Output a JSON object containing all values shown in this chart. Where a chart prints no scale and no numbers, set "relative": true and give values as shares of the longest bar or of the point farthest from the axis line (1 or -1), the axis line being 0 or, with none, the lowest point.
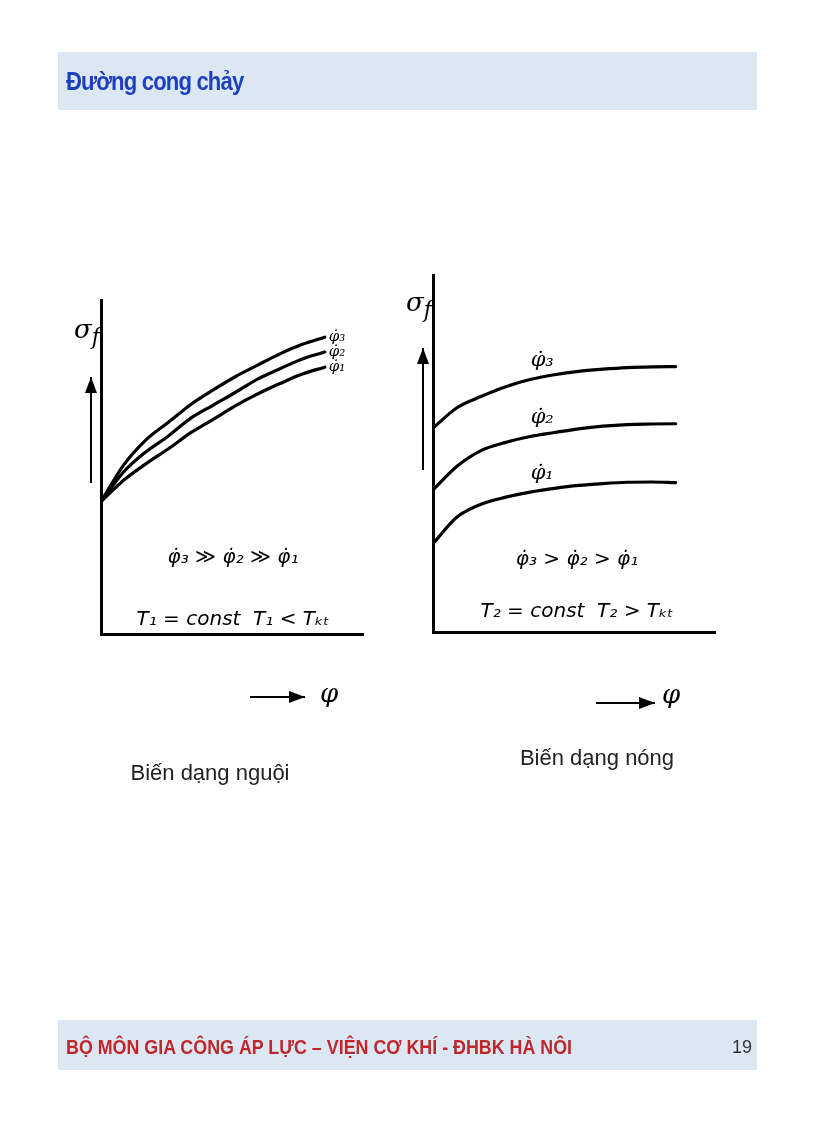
{
  "chart_data": [
    {
      "type": "other",
      "title": "Đường cong chảy",
      "annotations": [
        "BỘ MÔN GIA CÔNG ÁP LỰC – VIỆN CƠ KHÍ - ĐHBK HÀ NÔI",
        "19"
      ]
    },
    {
      "type": "line",
      "title": "Biến dạng nguội",
      "xlabel": "φ",
      "ylabel": "σ$_{f}$",
      "relative": true,
      "marker": "none",
      "line_style": "solid",
      "categories": [
        null,
        null,
        null,
        null,
        null,
        null,
        null,
        null,
        null,
        null,
        null
      ],
      "series": [
        {
          "name": "φ̇₁",
          "color": "#000000",
          "values": [
            0.447,
            0.518,
            0.574,
            0.624,
            0.678,
            0.723,
            0.769,
            0.809,
            0.844,
            0.876,
            0.899
          ]
        },
        {
          "name": "φ̇₂",
          "color": "#000000",
          "values": [
            0.447,
            0.546,
            0.614,
            0.667,
            0.727,
            0.771,
            0.814,
            0.859,
            0.894,
            0.927,
            0.95
          ]
        },
        {
          "name": "φ̇₃",
          "color": "#000000",
          "values": [
            0.447,
            0.569,
            0.654,
            0.713,
            0.773,
            0.822,
            0.867,
            0.906,
            0.944,
            0.976,
            1
          ]
        }
      ],
      "annotations": [
        "φ̇₃ ≫ φ̇₂ ≫ φ̇₁",
        "T₁ = const  T₁ < Tₖₜ"
      ]
    },
    {
      "type": "line",
      "title": "Biến dạng nóng",
      "xlabel": "φ",
      "ylabel": "σ$_{f}$",
      "relative": true,
      "marker": "none",
      "line_style": "solid",
      "categories": [
        null,
        null,
        null,
        null,
        null,
        null,
        null,
        null,
        null,
        null,
        null
      ],
      "series": [
        {
          "name": "φ̇₁",
          "color": "#000000",
          "values": [
            0.334,
            0.435,
            0.483,
            0.509,
            0.528,
            0.542,
            0.553,
            0.56,
            0.565,
            0.566,
            0.564
          ]
        },
        {
          "name": "φ̇₂",
          "color": "#000000",
          "values": [
            0.536,
            0.626,
            0.685,
            0.715,
            0.737,
            0.752,
            0.766,
            0.776,
            0.782,
            0.784,
            0.785
          ]
        },
        {
          "name": "φ̇₃",
          "color": "#000000",
          "values": [
            0.769,
            0.846,
            0.888,
            0.924,
            0.951,
            0.969,
            0.982,
            0.99,
            0.996,
            0.999,
            1
          ]
        }
      ],
      "annotations": [
        "φ̇₃ > φ̇₂ > φ̇₁",
        "T₂ = const  T₂ > Tₖₜ"
      ]
    }
  ]
}
